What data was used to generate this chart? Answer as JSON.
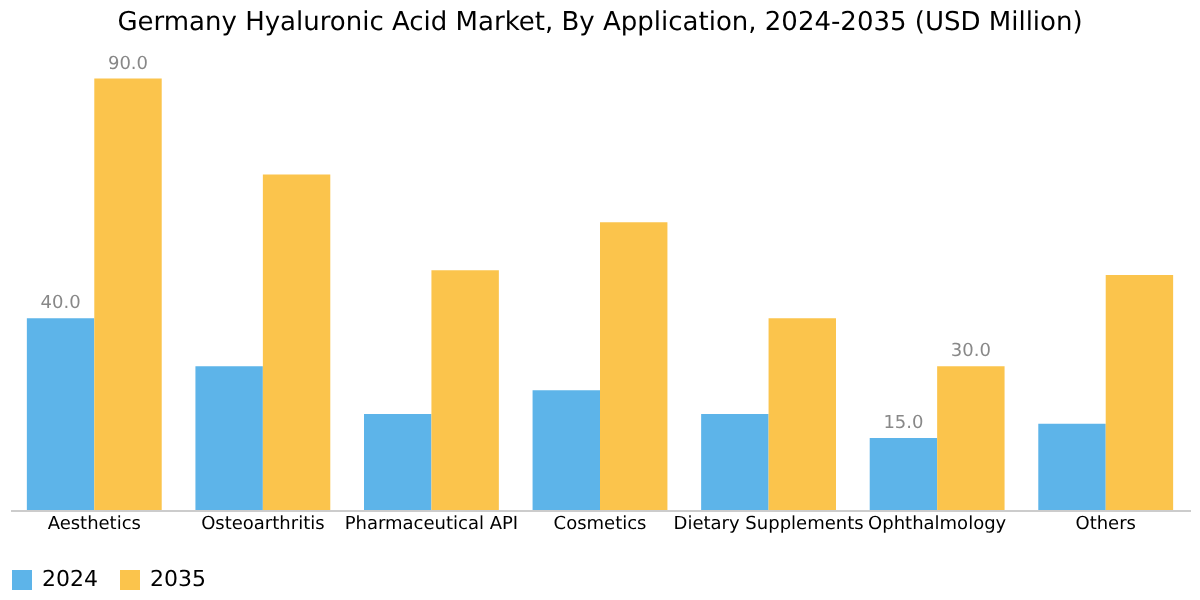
{
  "chart_data": {
    "type": "bar",
    "title": "Germany Hyaluronic Acid Market, By Application, 2024-2035 (USD Million)",
    "categories": [
      "Aesthetics",
      "Osteoarthritis",
      "Pharmaceutical API",
      "Cosmetics",
      "Dietary Supplements",
      "Ophthalmology",
      "Others"
    ],
    "series": [
      {
        "name": "2024",
        "color": "#5db4e9",
        "values": [
          40,
          30,
          20,
          25,
          20,
          15,
          18
        ],
        "value_labels": [
          "40.0",
          null,
          null,
          null,
          null,
          "15.0",
          null
        ]
      },
      {
        "name": "2035",
        "color": "#fbc44c",
        "values": [
          90,
          70,
          50,
          60,
          40,
          30,
          49
        ],
        "value_labels": [
          "90.0",
          null,
          null,
          null,
          null,
          "30.0",
          null
        ]
      }
    ],
    "legend": "bottom",
    "grid": false
  }
}
